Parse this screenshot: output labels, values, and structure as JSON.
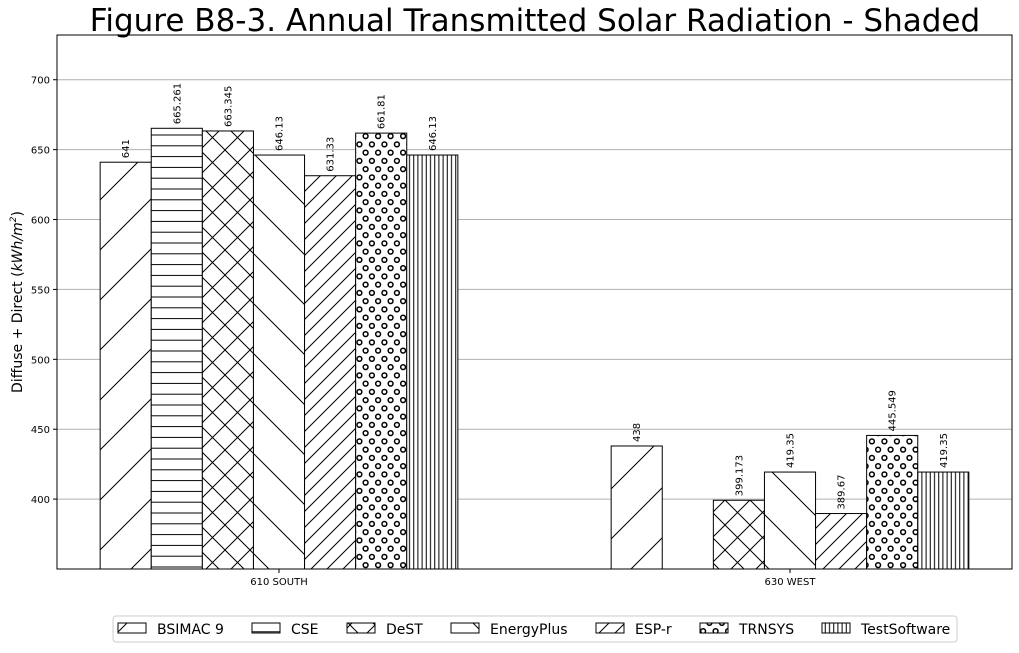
{
  "chart_data": {
    "type": "bar",
    "title": "Figure B8-3.  Annual Transmitted Solar Radiation - Shaded",
    "xlabel": "",
    "ylabel_main": "Diffuse + Direct (",
    "ylabel_unit": "kWh/m",
    "ylabel_exp": "2",
    "ylabel_close": ")",
    "ylim": [
      350,
      732
    ],
    "yticks": [
      400,
      450,
      500,
      550,
      600,
      650,
      700
    ],
    "grid": "horizontal",
    "legend_placement": "bottom",
    "categories": [
      "610 SOUTH",
      "630 WEST"
    ],
    "series": [
      {
        "name": "BSIMAC 9",
        "pattern": "diag-forward",
        "values": [
          641,
          438
        ],
        "labels": [
          "641",
          "438"
        ]
      },
      {
        "name": "CSE",
        "pattern": "horizontal",
        "values": [
          665.261,
          null
        ],
        "labels": [
          "665.261",
          ""
        ]
      },
      {
        "name": "DeST",
        "pattern": "crosshatch",
        "values": [
          663.345,
          399.173
        ],
        "labels": [
          "663.345",
          "399.173"
        ]
      },
      {
        "name": "EnergyPlus",
        "pattern": "diag-back",
        "values": [
          646.13,
          419.35
        ],
        "labels": [
          "646.13",
          "419.35"
        ]
      },
      {
        "name": "ESP-r",
        "pattern": "diag-forward-dense",
        "values": [
          631.33,
          389.67
        ],
        "labels": [
          "631.33",
          "389.67"
        ]
      },
      {
        "name": "TRNSYS",
        "pattern": "circles",
        "values": [
          661.81,
          445.549
        ],
        "labels": [
          "661.81",
          "445.549"
        ]
      },
      {
        "name": "TestSoftware",
        "pattern": "vertical",
        "values": [
          646.13,
          419.35
        ],
        "labels": [
          "646.13",
          "419.35"
        ]
      }
    ]
  }
}
